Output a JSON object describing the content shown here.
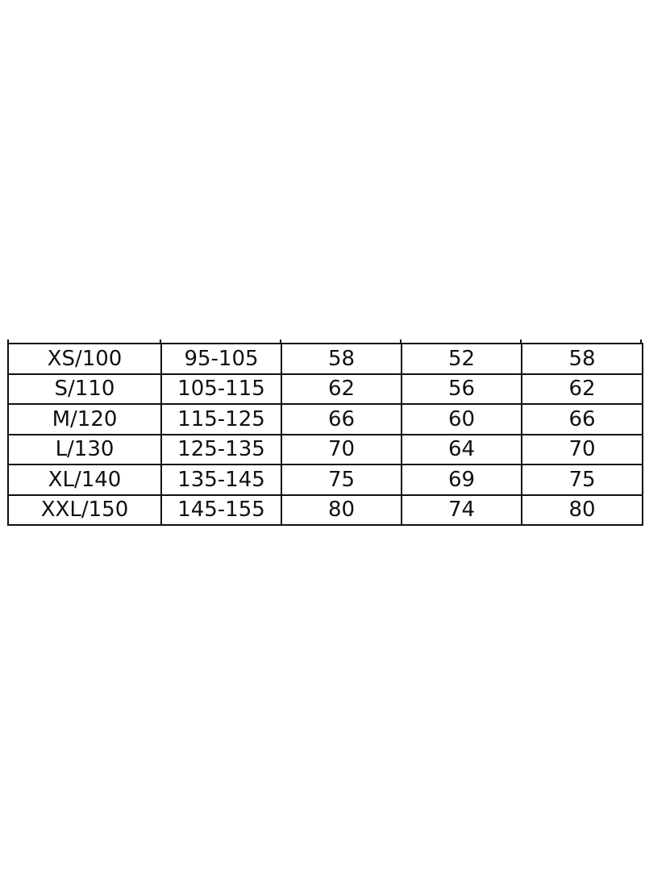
{
  "size_table": {
    "rows": [
      [
        "XS/100",
        "95-105",
        "58",
        "52",
        "58"
      ],
      [
        "S/110",
        "105-115",
        "62",
        "56",
        "62"
      ],
      [
        "M/120",
        "115-125",
        "66",
        "60",
        "66"
      ],
      [
        "L/130",
        "125-135",
        "70",
        "64",
        "70"
      ],
      [
        "XL/140",
        "135-145",
        "75",
        "69",
        "75"
      ],
      [
        "XXL/150",
        "145-155",
        "80",
        "74",
        "80"
      ]
    ]
  }
}
